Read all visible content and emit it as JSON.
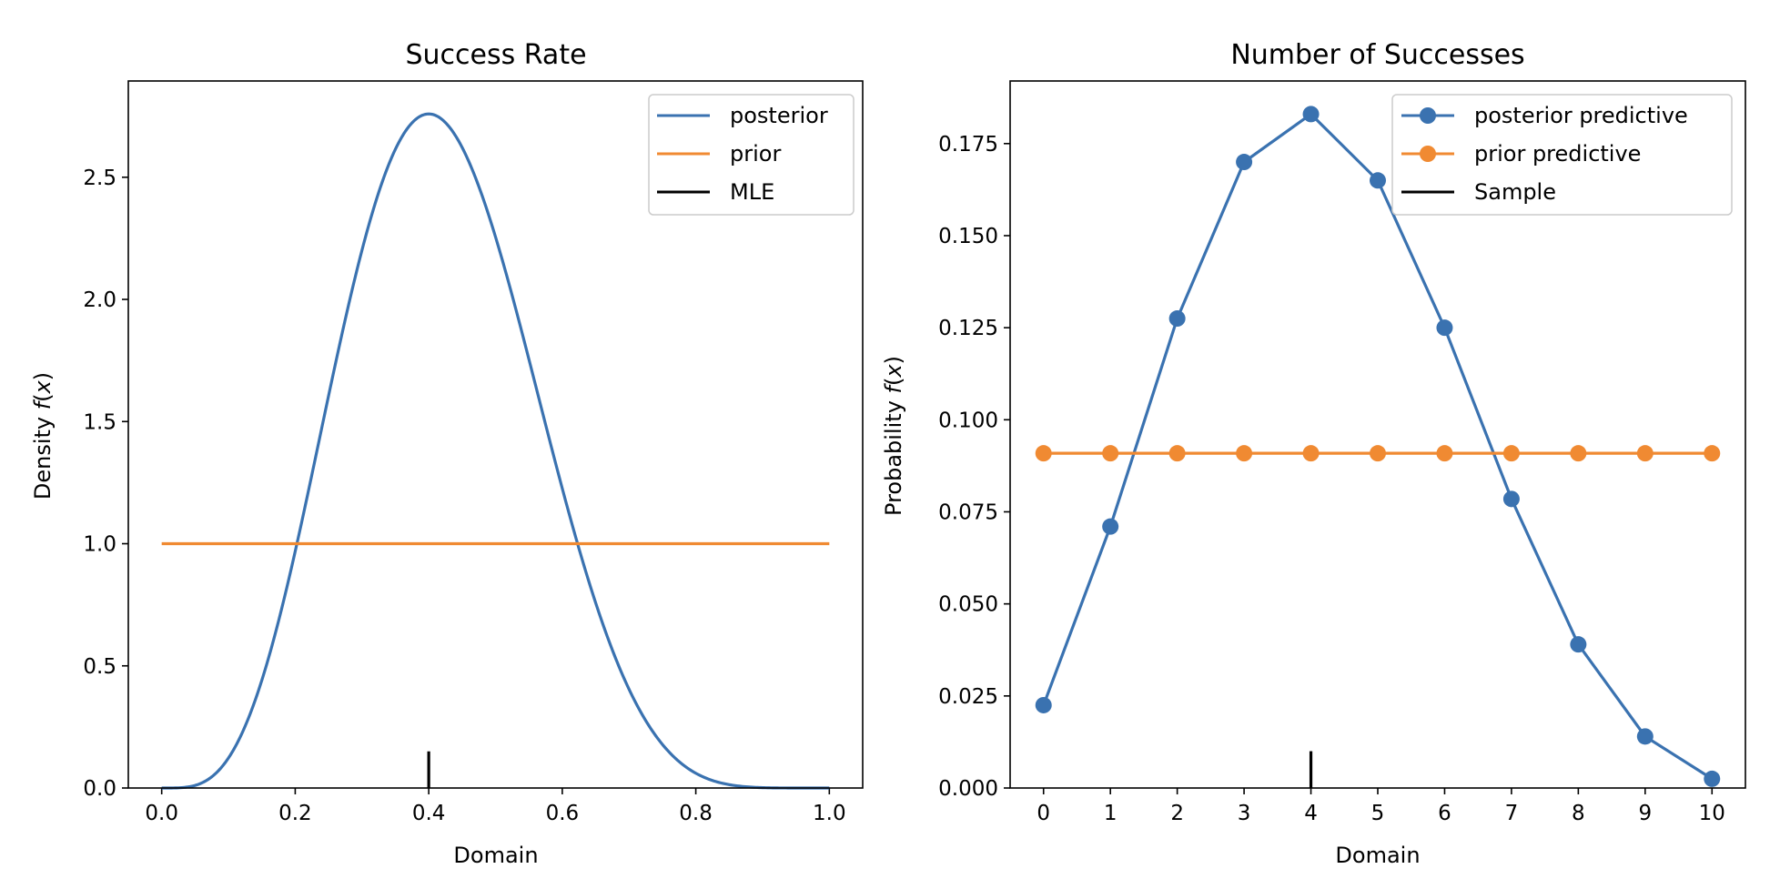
{
  "colors": {
    "posterior": "#3a72b0",
    "prior": "#f08a32",
    "marker": "#000000"
  },
  "chart_data": [
    {
      "type": "line",
      "title": "Success Rate",
      "xlabel": "Domain",
      "ylabel_prefix": "Density ",
      "ylabel_var": "f",
      "ylabel_suffix_open": "(",
      "ylabel_arg": "x",
      "ylabel_suffix_close": ")",
      "xlim": [
        -0.05,
        1.05
      ],
      "ylim": [
        0,
        2.894
      ],
      "xticks": [
        0.0,
        0.2,
        0.4,
        0.6,
        0.8,
        1.0
      ],
      "xtick_labels": [
        "0.0",
        "0.2",
        "0.4",
        "0.6",
        "0.8",
        "1.0"
      ],
      "yticks": [
        0.0,
        0.5,
        1.0,
        1.5,
        2.0,
        2.5
      ],
      "ytick_labels": [
        "0.0",
        "0.5",
        "1.0",
        "1.5",
        "2.0",
        "2.5"
      ],
      "series": [
        {
          "name": "posterior",
          "kind": "beta_density",
          "alpha": 5,
          "beta": 7,
          "x_range": [
            0,
            1
          ]
        },
        {
          "name": "prior",
          "kind": "constant",
          "value": 1.0,
          "x_range": [
            0,
            1
          ]
        },
        {
          "name": "MLE",
          "kind": "vline",
          "x": 0.4,
          "y_range": [
            0,
            0.15
          ]
        }
      ],
      "legend": {
        "placement": "top-right",
        "entries": [
          "posterior",
          "prior",
          "MLE"
        ]
      }
    },
    {
      "type": "line",
      "title": "Number of Successes",
      "xlabel": "Domain",
      "ylabel_prefix": "Probability ",
      "ylabel_var": "f",
      "ylabel_suffix_open": "(",
      "ylabel_arg": "x",
      "ylabel_suffix_close": ")",
      "xlim": [
        -0.5,
        10.5
      ],
      "ylim": [
        0,
        0.192
      ],
      "xticks": [
        0,
        1,
        2,
        3,
        4,
        5,
        6,
        7,
        8,
        9,
        10
      ],
      "xtick_labels": [
        "0",
        "1",
        "2",
        "3",
        "4",
        "5",
        "6",
        "7",
        "8",
        "9",
        "10"
      ],
      "yticks": [
        0.0,
        0.025,
        0.05,
        0.075,
        0.1,
        0.125,
        0.15,
        0.175
      ],
      "ytick_labels": [
        "0.000",
        "0.025",
        "0.050",
        "0.075",
        "0.100",
        "0.125",
        "0.150",
        "0.175"
      ],
      "series": [
        {
          "name": "posterior predictive",
          "kind": "points",
          "x": [
            0,
            1,
            2,
            3,
            4,
            5,
            6,
            7,
            8,
            9,
            10
          ],
          "y": [
            0.0225,
            0.071,
            0.1275,
            0.17,
            0.183,
            0.165,
            0.125,
            0.0785,
            0.039,
            0.014,
            0.0025
          ]
        },
        {
          "name": "prior predictive",
          "kind": "points",
          "x": [
            0,
            1,
            2,
            3,
            4,
            5,
            6,
            7,
            8,
            9,
            10
          ],
          "y": [
            0.0909,
            0.0909,
            0.0909,
            0.0909,
            0.0909,
            0.0909,
            0.0909,
            0.0909,
            0.0909,
            0.0909,
            0.0909
          ]
        },
        {
          "name": "Sample",
          "kind": "vline",
          "x": 4,
          "y_range": [
            0,
            0.01
          ]
        }
      ],
      "legend": {
        "placement": "top-right",
        "entries": [
          "posterior predictive",
          "prior predictive",
          "Sample"
        ]
      }
    }
  ]
}
